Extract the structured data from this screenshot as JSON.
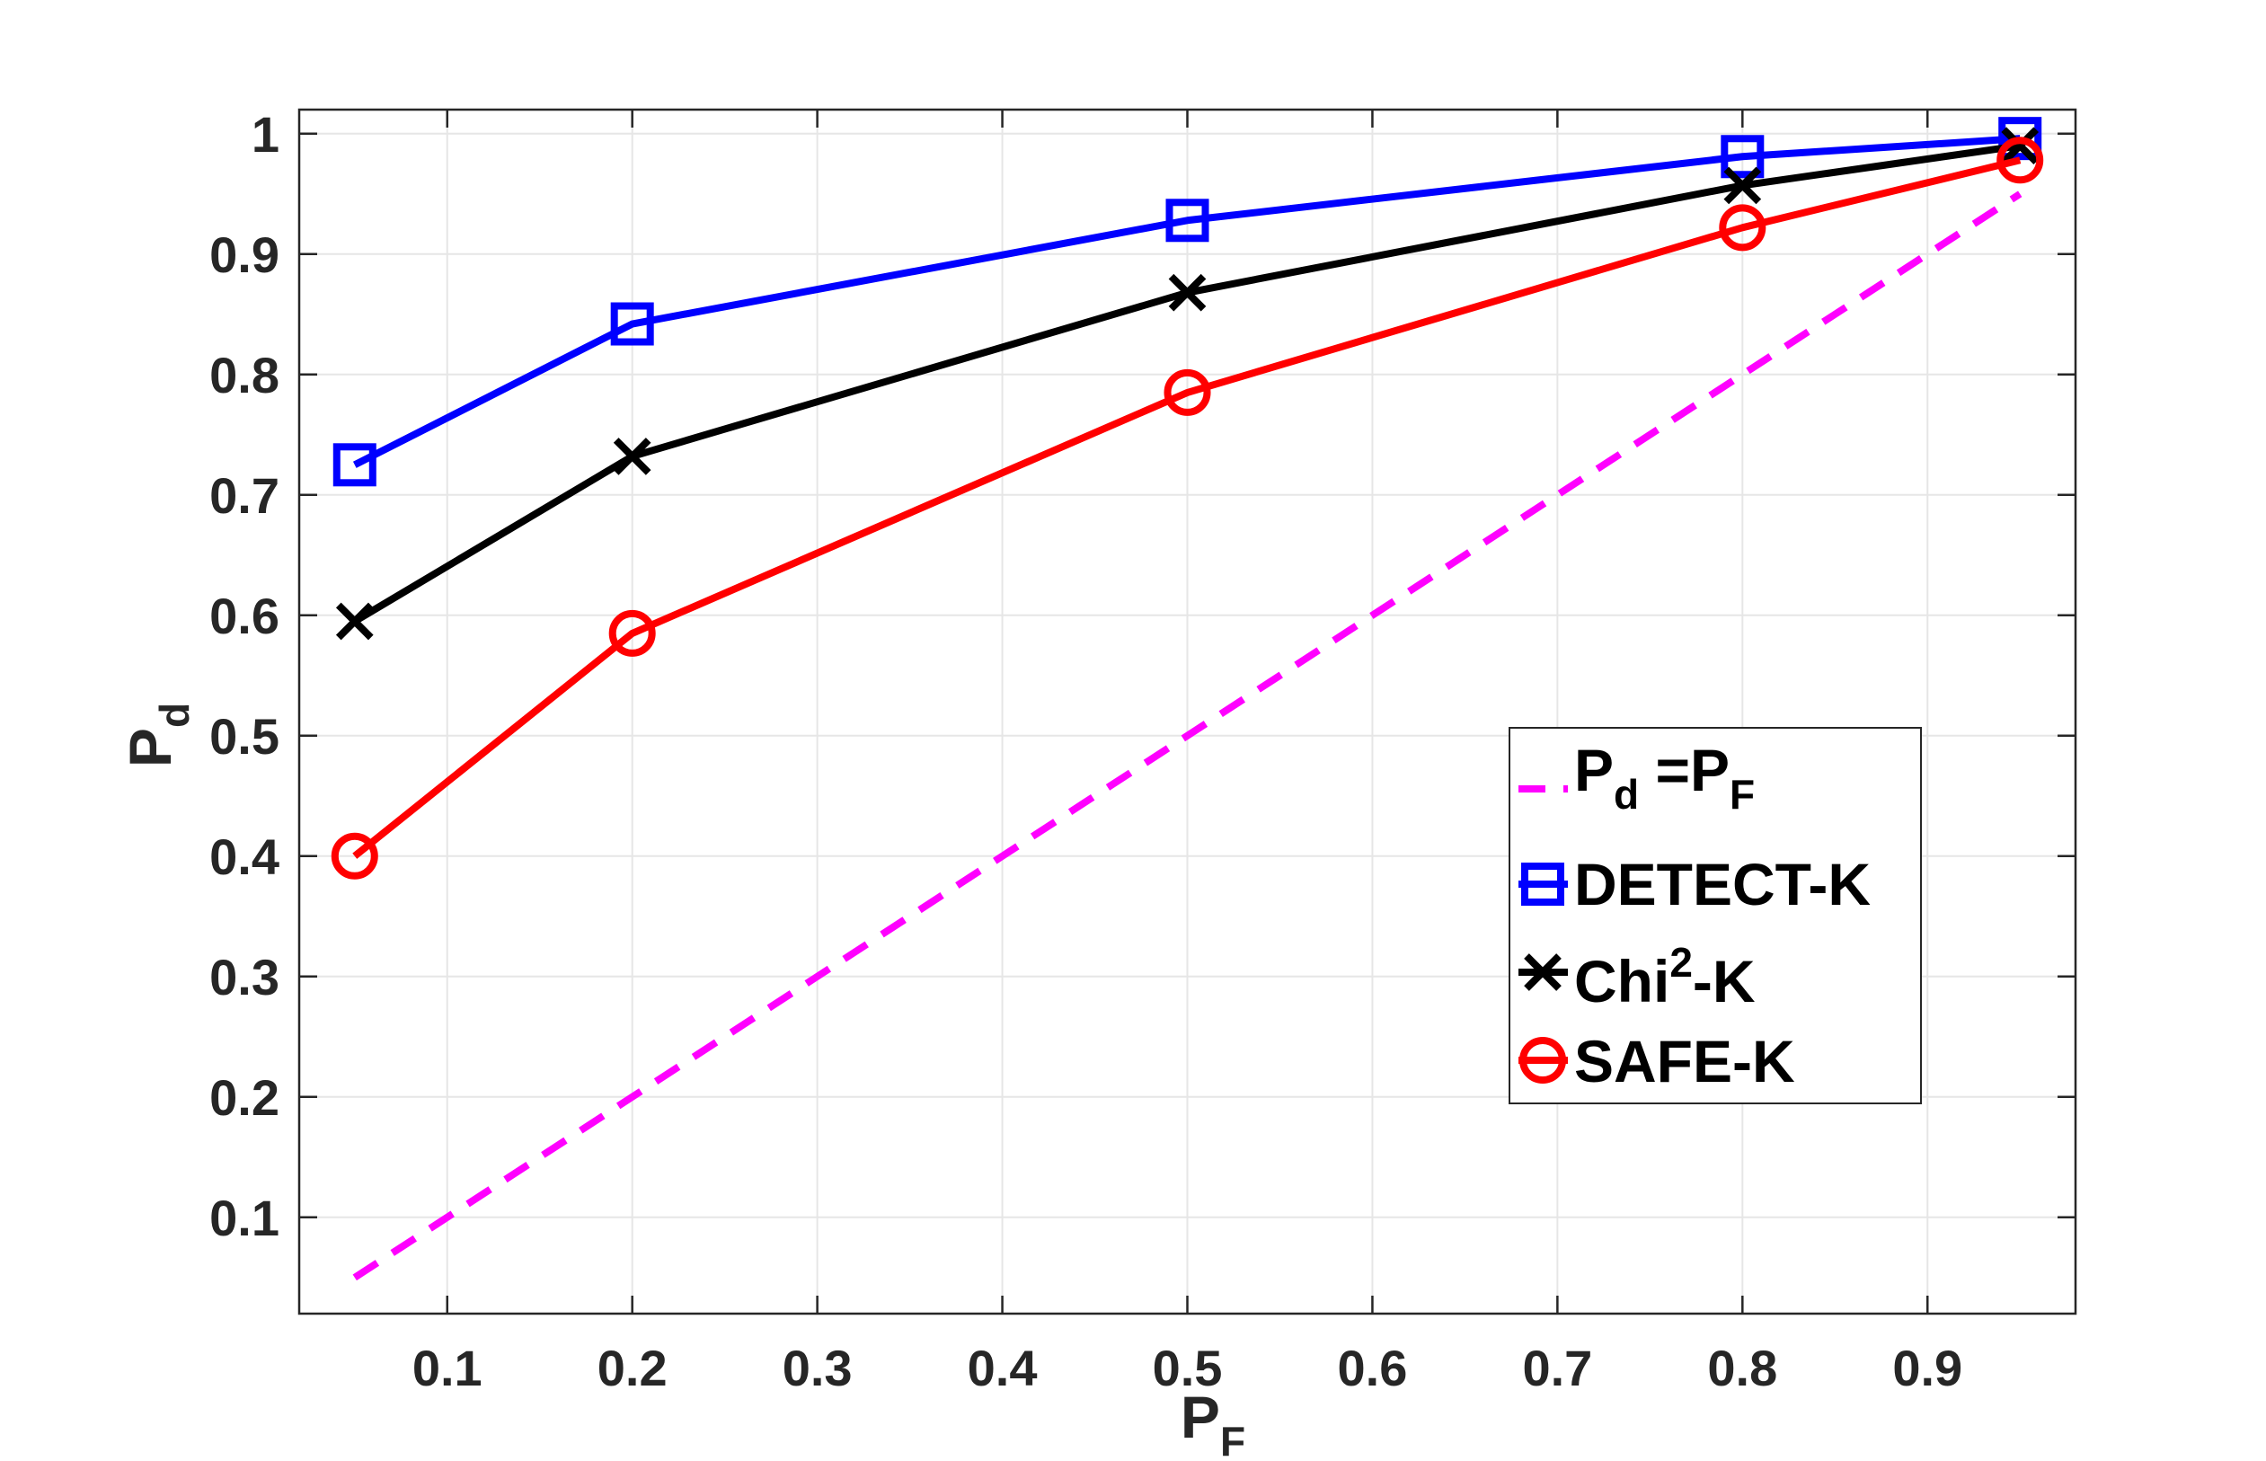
{
  "chart_data": {
    "type": "line",
    "xlabel": {
      "main": "P",
      "sub": "F"
    },
    "ylabel": {
      "main": "P",
      "sub": "d"
    },
    "xlim": [
      0.02,
      0.98
    ],
    "ylim": [
      0.02,
      1.02
    ],
    "x_ticks": [
      0.1,
      0.2,
      0.3,
      0.4,
      0.5,
      0.6,
      0.7,
      0.8,
      0.9
    ],
    "x_tick_labels": [
      "0.1",
      "0.2",
      "0.3",
      "0.4",
      "0.5",
      "0.6",
      "0.7",
      "0.8",
      "0.9"
    ],
    "y_ticks": [
      0.1,
      0.2,
      0.3,
      0.4,
      0.5,
      0.6,
      0.7,
      0.8,
      0.9,
      1.0
    ],
    "y_tick_labels": [
      "0.1",
      "0.2",
      "0.3",
      "0.4",
      "0.5",
      "0.6",
      "0.7",
      "0.8",
      "0.9",
      "1"
    ],
    "grid": true,
    "legend_position": "center-right",
    "x": [
      0.05,
      0.2,
      0.5,
      0.8,
      0.95
    ],
    "series": [
      {
        "name": "Pd =PF",
        "legend": {
          "p1": "P",
          "sub1": "d",
          "mid": " =P",
          "sub2": "F"
        },
        "x": [
          0.05,
          0.95
        ],
        "values": [
          0.05,
          0.95
        ],
        "color": "#ff00ff",
        "style": "dashed",
        "marker": "none"
      },
      {
        "name": "DETECT-K",
        "legend": {
          "text": "DETECT-K"
        },
        "values": [
          0.725,
          0.842,
          0.928,
          0.981,
          0.996
        ],
        "color": "#0000ff",
        "style": "solid",
        "marker": "square"
      },
      {
        "name": "Chi2-K",
        "legend": {
          "pre": "Chi",
          "sup": "2",
          "post": "-K"
        },
        "values": [
          0.595,
          0.732,
          0.868,
          0.957,
          0.99
        ],
        "color": "#000000",
        "style": "solid",
        "marker": "x"
      },
      {
        "name": "SAFE-K",
        "legend": {
          "text": "SAFE-K"
        },
        "values": [
          0.4,
          0.585,
          0.785,
          0.922,
          0.978
        ],
        "color": "#ff0000",
        "style": "solid",
        "marker": "circle"
      }
    ]
  }
}
